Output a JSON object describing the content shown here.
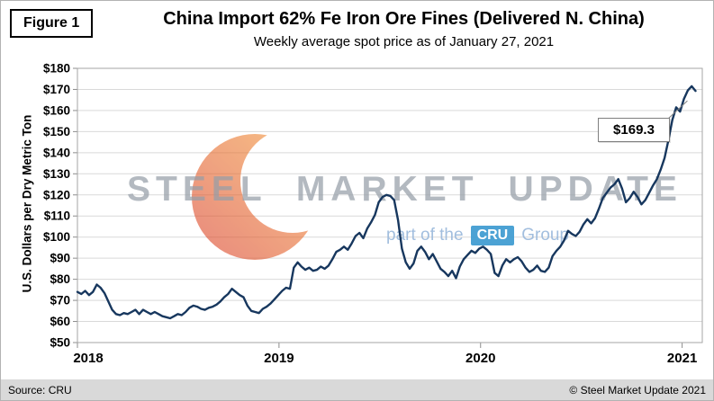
{
  "figure_label": "Figure 1",
  "title": "China Import 62% Fe Iron Ore Fines (Delivered N. China)",
  "subtitle": "Weekly average spot price as of January 27, 2021",
  "y_axis_title": "U.S. Dollars per Dry Metric Ton",
  "annotation": {
    "label": "$169.3"
  },
  "watermark": {
    "line1": "STEEL MARKET UPDATE",
    "part_prefix": "part of the",
    "cru": "CRU",
    "group": "Group"
  },
  "footer": {
    "source": "Source: CRU",
    "copyright": "© Steel Market Update 2021"
  },
  "colors": {
    "line": "#17375E",
    "grid": "#D9D9D9",
    "axis": "#8C8C8C",
    "plot_border": "#A6A6A6",
    "connector": "#808080",
    "logo_red": "#D93A26",
    "logo_orange": "#F59A33",
    "cru_blue": "#3D9BD1",
    "footer_bg": "#D9D9D9"
  },
  "chart_data": {
    "type": "line",
    "title": "China Import 62% Fe Iron Ore Fines (Delivered N. China)",
    "subtitle": "Weekly average spot price as of January 27, 2021",
    "ylabel": "U.S. Dollars per Dry Metric Ton",
    "frequency": "weekly",
    "as_of": "January 27, 2021",
    "last_value": 169.3,
    "grid": "horizontal",
    "legend": "none",
    "x_axis": {
      "start_year": 2018,
      "end": 2021.1,
      "points_per_year": 52.18,
      "tick_labels": [
        "2018",
        "2019",
        "2020",
        "2021"
      ]
    },
    "y_axis": {
      "min": 50,
      "max": 180,
      "step": 10,
      "tick_prefix": "$",
      "tick_labels": [
        "$50",
        "$60",
        "$70",
        "$80",
        "$90",
        "$100",
        "$110",
        "$120",
        "$130",
        "$140",
        "$150",
        "$160",
        "$170",
        "$180"
      ]
    },
    "series": [
      {
        "name": "China Import 62% Fe Iron Ore Fines (USD/dmt)",
        "values": [
          74,
          73,
          74.5,
          72.5,
          74,
          77.5,
          76,
          73.5,
          69.5,
          65.5,
          63.5,
          63,
          64,
          63.5,
          64.5,
          65.5,
          63.5,
          65.5,
          64.5,
          63.5,
          64.5,
          63.5,
          62.5,
          62,
          61.5,
          62.5,
          63.5,
          63,
          64.5,
          66.5,
          67.5,
          67,
          66,
          65.5,
          66.5,
          67,
          68,
          69.5,
          71.5,
          73,
          75.5,
          74,
          72.5,
          71.5,
          67.5,
          65,
          64.5,
          64,
          66,
          67,
          68.5,
          70.5,
          72.5,
          74.5,
          76,
          75.5,
          85.5,
          88,
          86,
          84.5,
          85.5,
          84,
          84.5,
          86,
          85,
          86.5,
          89.5,
          93,
          94,
          95.5,
          94,
          97,
          100.5,
          102,
          99.5,
          104,
          107,
          110.5,
          116.5,
          119,
          120,
          119.5,
          117.5,
          108,
          94.5,
          88,
          85,
          87.5,
          93.5,
          95.5,
          93,
          89.5,
          92,
          88.5,
          85,
          83.5,
          81.5,
          84,
          80.5,
          86,
          89.5,
          91.5,
          93.5,
          92.5,
          94.5,
          95.5,
          94,
          92,
          83,
          81.5,
          86.5,
          89.5,
          88,
          89.5,
          90.5,
          88.5,
          85.5,
          83.5,
          84.5,
          86.5,
          84,
          83.5,
          85.5,
          91,
          93.5,
          95.5,
          98.5,
          103,
          101.5,
          100.5,
          102.5,
          106,
          108.5,
          106.5,
          109,
          113.5,
          118.5,
          121,
          123.5,
          125,
          127.5,
          123,
          116.5,
          118.5,
          121.5,
          119,
          115.5,
          117.5,
          121,
          124.5,
          127.5,
          132,
          137.5,
          146,
          155.5,
          161.5,
          159.5,
          165.5,
          169.5,
          171.5,
          169.3
        ]
      }
    ]
  }
}
